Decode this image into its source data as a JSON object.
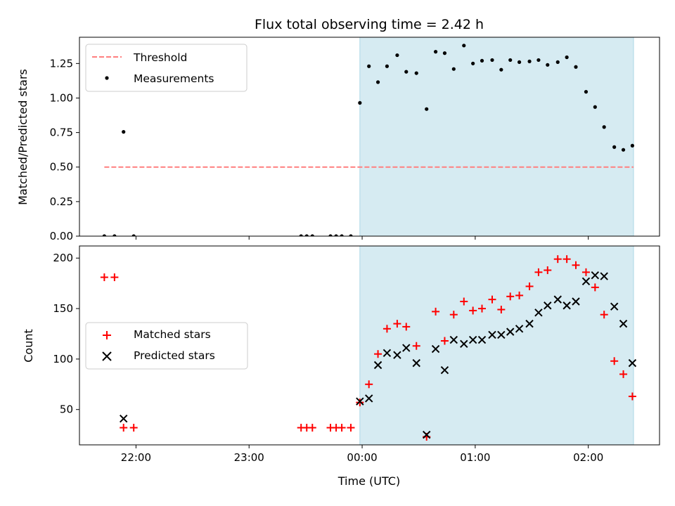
{
  "chart_data": [
    {
      "type": "scatter",
      "title": "Flux total observing time = 2.42 h",
      "xlabel": "",
      "ylabel": "Matched/Predicted stars",
      "xlim": [
        -2.5,
        2.63
      ],
      "ylim": [
        0,
        1.44
      ],
      "yticks": [
        0.0,
        0.25,
        0.5,
        0.75,
        1.0,
        1.25
      ],
      "ytick_labels": [
        "0.00",
        "0.25",
        "0.50",
        "0.75",
        "1.00",
        "1.25"
      ],
      "xticks": [
        -2,
        -1,
        0,
        1,
        2
      ],
      "shaded_region": {
        "x": [
          -0.02,
          2.4
        ],
        "color": "#add8e6",
        "alpha": 0.5
      },
      "legend": {
        "placement": "top-left",
        "entries": [
          "Threshold",
          "Measurements"
        ]
      },
      "threshold": {
        "name": "Threshold",
        "y": 0.5,
        "x": [
          -2.28,
          2.4
        ],
        "color": "#ff7f7f",
        "style": "dashed"
      },
      "series": [
        {
          "name": "Measurements",
          "color": "#000000",
          "marker": "dot",
          "points": [
            [
              -2.28,
              0.0
            ],
            [
              -2.19,
              0.0
            ],
            [
              -2.11,
              0.755
            ],
            [
              -2.02,
              0.0
            ],
            [
              -0.54,
              0.0
            ],
            [
              -0.49,
              0.0
            ],
            [
              -0.44,
              0.0
            ],
            [
              -0.28,
              0.0
            ],
            [
              -0.23,
              0.0
            ],
            [
              -0.18,
              0.0
            ],
            [
              -0.1,
              0.0
            ],
            [
              -0.02,
              0.965
            ],
            [
              0.06,
              1.23
            ],
            [
              0.14,
              1.115
            ],
            [
              0.22,
              1.23
            ],
            [
              0.31,
              1.31
            ],
            [
              0.39,
              1.19
            ],
            [
              0.48,
              1.18
            ],
            [
              0.57,
              0.92
            ],
            [
              0.65,
              1.335
            ],
            [
              0.73,
              1.325
            ],
            [
              0.81,
              1.21
            ],
            [
              0.9,
              1.38
            ],
            [
              0.98,
              1.25
            ],
            [
              1.06,
              1.27
            ],
            [
              1.15,
              1.275
            ],
            [
              1.23,
              1.205
            ],
            [
              1.31,
              1.275
            ],
            [
              1.39,
              1.26
            ],
            [
              1.48,
              1.265
            ],
            [
              1.56,
              1.275
            ],
            [
              1.64,
              1.24
            ],
            [
              1.73,
              1.26
            ],
            [
              1.81,
              1.295
            ],
            [
              1.89,
              1.225
            ],
            [
              1.98,
              1.045
            ],
            [
              2.06,
              0.935
            ],
            [
              2.14,
              0.79
            ],
            [
              2.23,
              0.645
            ],
            [
              2.31,
              0.625
            ],
            [
              2.39,
              0.655
            ]
          ]
        }
      ]
    },
    {
      "type": "scatter",
      "title": "",
      "xlabel": "Time (UTC)",
      "ylabel": "Count",
      "xlim": [
        -2.5,
        2.63
      ],
      "ylim": [
        15,
        212
      ],
      "yticks": [
        50,
        100,
        150,
        200
      ],
      "ytick_labels": [
        "50",
        "100",
        "150",
        "200"
      ],
      "xticks": [
        -2,
        -1,
        0,
        1,
        2
      ],
      "xtick_labels": [
        "22:00",
        "23:00",
        "00:00",
        "01:00",
        "02:00"
      ],
      "shaded_region": {
        "x": [
          -0.02,
          2.4
        ],
        "color": "#add8e6",
        "alpha": 0.5
      },
      "legend": {
        "placement": "center-left",
        "entries": [
          "Matched stars",
          "Predicted stars"
        ]
      },
      "series": [
        {
          "name": "Matched stars",
          "color": "#ff0000",
          "marker": "plus",
          "points": [
            [
              -2.28,
              181
            ],
            [
              -2.19,
              181
            ],
            [
              -2.11,
              32
            ],
            [
              -2.02,
              32
            ],
            [
              -0.54,
              32
            ],
            [
              -0.49,
              32
            ],
            [
              -0.44,
              32
            ],
            [
              -0.28,
              32
            ],
            [
              -0.23,
              32
            ],
            [
              -0.18,
              32
            ],
            [
              -0.1,
              32
            ],
            [
              -0.02,
              57
            ],
            [
              0.06,
              75
            ],
            [
              0.14,
              105
            ],
            [
              0.22,
              130
            ],
            [
              0.31,
              135
            ],
            [
              0.39,
              132
            ],
            [
              0.48,
              113
            ],
            [
              0.57,
              23
            ],
            [
              0.65,
              147
            ],
            [
              0.73,
              118
            ],
            [
              0.81,
              144
            ],
            [
              0.9,
              157
            ],
            [
              0.98,
              148
            ],
            [
              1.06,
              150
            ],
            [
              1.15,
              159
            ],
            [
              1.23,
              149
            ],
            [
              1.31,
              162
            ],
            [
              1.39,
              163
            ],
            [
              1.48,
              172
            ],
            [
              1.56,
              186
            ],
            [
              1.64,
              188
            ],
            [
              1.73,
              199
            ],
            [
              1.81,
              199
            ],
            [
              1.89,
              193
            ],
            [
              1.98,
              186
            ],
            [
              2.06,
              171
            ],
            [
              2.14,
              144
            ],
            [
              2.23,
              98
            ],
            [
              2.31,
              85
            ],
            [
              2.39,
              63
            ]
          ]
        },
        {
          "name": "Predicted stars",
          "color": "#000000",
          "marker": "x",
          "points": [
            [
              -2.11,
              41
            ],
            [
              -0.02,
              58
            ],
            [
              0.06,
              61
            ],
            [
              0.14,
              94
            ],
            [
              0.22,
              106
            ],
            [
              0.31,
              104
            ],
            [
              0.39,
              111
            ],
            [
              0.48,
              96
            ],
            [
              0.57,
              25
            ],
            [
              0.65,
              110
            ],
            [
              0.73,
              89
            ],
            [
              0.81,
              119
            ],
            [
              0.9,
              115
            ],
            [
              0.98,
              119
            ],
            [
              1.06,
              119
            ],
            [
              1.15,
              124
            ],
            [
              1.23,
              124
            ],
            [
              1.31,
              127
            ],
            [
              1.39,
              130
            ],
            [
              1.48,
              135
            ],
            [
              1.56,
              146
            ],
            [
              1.64,
              153
            ],
            [
              1.73,
              159
            ],
            [
              1.81,
              153
            ],
            [
              1.89,
              157
            ],
            [
              1.98,
              177
            ],
            [
              2.06,
              183
            ],
            [
              2.14,
              182
            ],
            [
              2.23,
              152
            ],
            [
              2.31,
              135
            ],
            [
              2.39,
              96
            ]
          ]
        }
      ]
    }
  ]
}
